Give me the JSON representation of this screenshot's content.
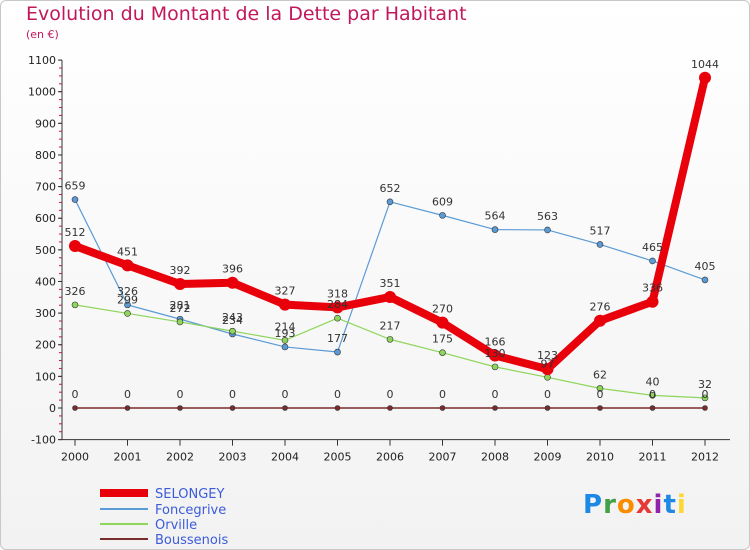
{
  "chart_data": {
    "type": "line",
    "title": "Evolution du Montant de la Dette par Habitant",
    "subtitle": "(en €)",
    "x": [
      "2000",
      "2001",
      "2002",
      "2003",
      "2004",
      "2005",
      "2006",
      "2007",
      "2008",
      "2009",
      "2010",
      "2011",
      "2012"
    ],
    "ylim": [
      -100,
      1100
    ],
    "yticks": [
      -100,
      0,
      100,
      200,
      300,
      400,
      500,
      600,
      700,
      800,
      900,
      1000,
      1100
    ],
    "grid": "off",
    "legend_position": "bottom-left",
    "series": [
      {
        "name": "SELONGEY",
        "color": "#e8000b",
        "values": [
          512,
          451,
          392,
          396,
          327,
          318,
          351,
          270,
          166,
          123,
          276,
          336,
          1044
        ]
      },
      {
        "name": "Foncegrive",
        "color": "#5b9bd5",
        "values": [
          659,
          326,
          281,
          234,
          193,
          177,
          652,
          609,
          564,
          563,
          517,
          465,
          405
        ]
      },
      {
        "name": "Orville",
        "color": "#8ed55b",
        "values": [
          326,
          299,
          272,
          243,
          214,
          284,
          217,
          175,
          130,
          97,
          62,
          40,
          32
        ]
      },
      {
        "name": "Boussenois",
        "color": "#7a2b2b",
        "values": [
          0,
          0,
          0,
          0,
          0,
          0,
          0,
          0,
          0,
          0,
          0,
          0,
          0
        ]
      }
    ]
  },
  "logo": {
    "text": "Proxiti"
  }
}
